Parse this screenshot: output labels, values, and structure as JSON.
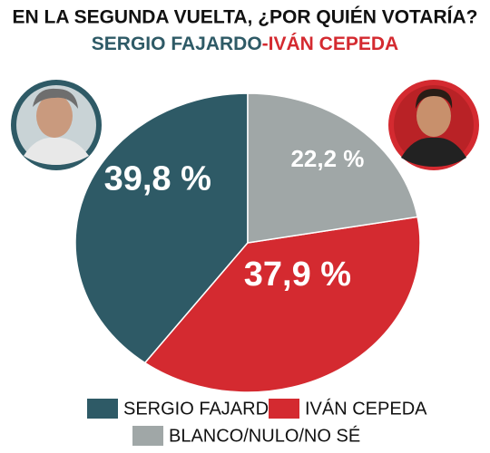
{
  "chart_data": {
    "type": "pie",
    "title": "EN LA SEGUNDA VUELTA, ¿POR QUIÉN VOTARÍA?",
    "subtitle": [
      "SERGIO FAJARDO",
      "-IVÁN CEPEDA"
    ],
    "subtitle_colors": [
      "#2e5a66",
      "#d42a30"
    ],
    "categories": [
      "SERGIO FAJARDO",
      "IVÁN CEPEDA",
      "BLANCO/NULO/NO SÉ"
    ],
    "values": [
      39.8,
      37.9,
      22.2
    ],
    "value_labels": [
      "39,8 %",
      "37,9 %",
      "22,2 %"
    ],
    "colors": [
      "#2e5a66",
      "#d42a30",
      "#a0a7a7"
    ],
    "legend": "bottom"
  }
}
